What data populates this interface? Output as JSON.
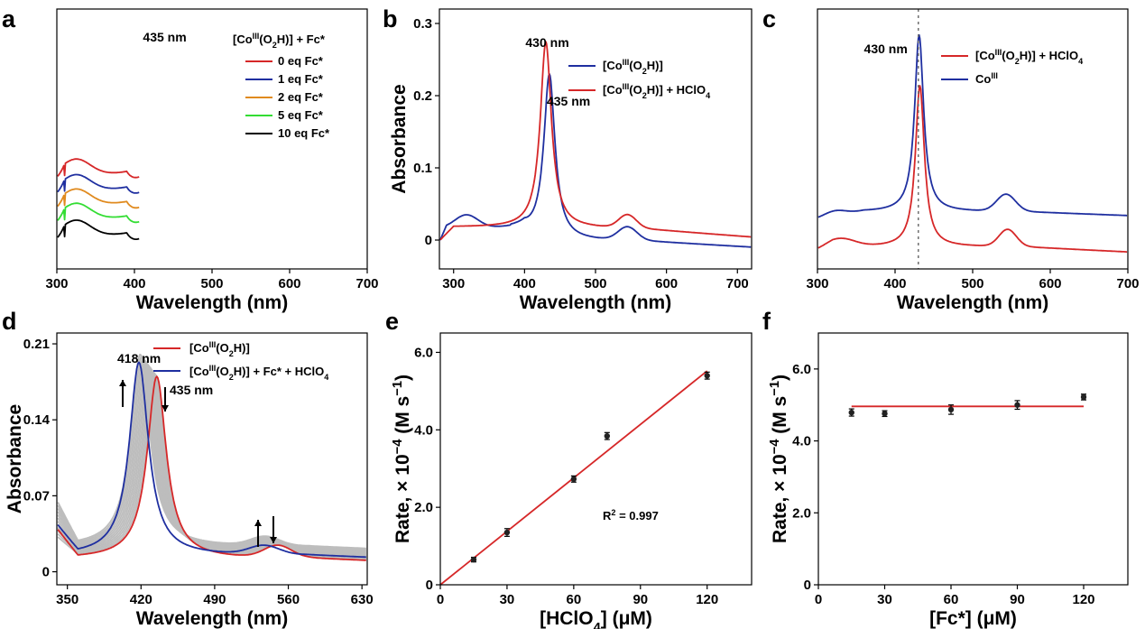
{
  "chart_data": [
    {
      "panel": "a",
      "type": "line",
      "xlabel": "Wavelength (nm)",
      "ylabel": "",
      "xlim": [
        300,
        700
      ],
      "ylim": [
        0,
        1
      ],
      "xticks": [
        300,
        400,
        500,
        600,
        700
      ],
      "yticks": [],
      "peak_label": "435 nm",
      "legend_title": "[Co(O2H)] + Fc*",
      "legend_title_parts": {
        "pre": "[Co",
        "sup": "III",
        "mid": "(O",
        "sub": "2",
        "post": "H)] + Fc*"
      },
      "legend_position": "top-right",
      "series": [
        {
          "name": "0 eq Fc*",
          "color": "#d62728",
          "offset": 0.315,
          "peak": 0.99
        },
        {
          "name": "1 eq Fc*",
          "color": "#1f2fa0",
          "offset": 0.255,
          "peak": 0.935
        },
        {
          "name": "2 eq Fc*",
          "color": "#e08a1e",
          "offset": 0.2,
          "peak": 0.83
        },
        {
          "name": "5 eq Fc*",
          "color": "#33dd33",
          "offset": 0.145,
          "peak": 0.765
        },
        {
          "name": "10 eq Fc*",
          "color": "#000000",
          "offset": 0.08,
          "peak": 0.69
        }
      ]
    },
    {
      "panel": "b",
      "type": "line",
      "xlabel": "Wavelength (nm)",
      "ylabel": "Absorbance",
      "xlim": [
        280,
        720
      ],
      "ylim": [
        -0.04,
        0.32
      ],
      "xticks": [
        300,
        400,
        500,
        600,
        700
      ],
      "yticks": [
        0,
        0.1,
        0.2,
        0.3
      ],
      "ytick_labels": [
        "0",
        "0.1",
        "0.2",
        "0.3"
      ],
      "annotations": [
        "430 nm",
        "435 nm"
      ],
      "legend_position": "top-right",
      "series": [
        {
          "name": "[Co(O2H)]",
          "name_parts": {
            "pre": "[Co",
            "sup": "III",
            "mid": "(O",
            "sub": "2",
            "post": "H)]"
          },
          "color": "#1f2fa0",
          "peak_nm": 435,
          "peak_abs": 0.245
        },
        {
          "name": "[Co(O2H)] + HClO4",
          "name_parts": {
            "pre": "[Co",
            "sup": "III",
            "mid": "(O",
            "sub": "2",
            "post": "H)] + HClO",
            "sub2": "4"
          },
          "color": "#d62728",
          "peak_nm": 430,
          "peak_abs": 0.275
        }
      ]
    },
    {
      "panel": "c",
      "type": "line",
      "xlabel": "Wavelength (nm)",
      "ylabel": "",
      "xlim": [
        300,
        700
      ],
      "ylim": [
        0,
        1
      ],
      "xticks": [
        300,
        400,
        500,
        600,
        700
      ],
      "yticks": [],
      "annotations": [
        "430 nm"
      ],
      "dashed_line_nm": 430,
      "legend_position": "top-right",
      "series": [
        {
          "name": "[Co(O2H)] + HClO4",
          "name_parts": {
            "pre": "[Co",
            "sup": "III",
            "mid": "(O",
            "sub": "2",
            "post": "H)] + HClO",
            "sub2": "4"
          },
          "color": "#d62728"
        },
        {
          "name": "Co",
          "name_parts": {
            "pre": "Co",
            "sup": "III"
          },
          "color": "#1f2fa0"
        }
      ]
    },
    {
      "panel": "d",
      "type": "line",
      "xlabel": "Wavelength (nm)",
      "ylabel": "Absorbance",
      "xlim": [
        340,
        635
      ],
      "ylim": [
        -0.012,
        0.22
      ],
      "xticks": [
        350,
        420,
        490,
        560,
        630
      ],
      "yticks": [
        0,
        0.07,
        0.14,
        0.21
      ],
      "ytick_labels": [
        "0",
        "0.07",
        "0.14",
        "0.21"
      ],
      "annotations": [
        "418 nm",
        "435 nm"
      ],
      "legend_position": "top-right",
      "series": [
        {
          "name": "[Co(O2H)]",
          "name_parts": {
            "pre": "[Co",
            "sup": "III",
            "mid": "(O",
            "sub": "2",
            "post": "H)]"
          },
          "color": "#d62728",
          "peak_nm": 435,
          "peak_abs": 0.176
        },
        {
          "name": "[Co(O2H)] + Fc* + HClO4",
          "name_parts": {
            "pre": "[Co",
            "sup": "III",
            "mid": "(O",
            "sub": "2",
            "post": "H)] + Fc* + HClO",
            "sub2": "4"
          },
          "color": "#1f2fa0",
          "peak_nm": 418,
          "peak_abs": 0.19
        }
      ]
    },
    {
      "panel": "e",
      "type": "scatter",
      "xlabel": "[HClO4] (μM)",
      "xlabel_parts": {
        "pre": "[HClO",
        "sub": "4",
        "post": "] (μM)"
      },
      "ylabel": "Rate, × 10−4 (M s−1)",
      "ylabel_parts": {
        "pre": "Rate, × 10",
        "sup": "−4",
        "mid": " (M s",
        "sup2": "−1",
        "post": ")"
      },
      "xlim": [
        0,
        140
      ],
      "ylim": [
        0,
        6.5
      ],
      "xticks": [
        0,
        30,
        60,
        90,
        120
      ],
      "yticks": [
        0,
        2.0,
        4.0,
        6.0
      ],
      "ytick_labels": [
        "0",
        "2.0",
        "4.0",
        "6.0"
      ],
      "x": [
        15,
        30,
        60,
        75,
        120
      ],
      "y": [
        0.65,
        1.35,
        2.73,
        3.84,
        5.4
      ],
      "yerr": [
        0.06,
        0.1,
        0.08,
        0.09,
        0.09
      ],
      "fit_line": {
        "x": [
          0,
          120
        ],
        "y": [
          0,
          5.52
        ],
        "color": "#d62728"
      },
      "annotation": "R2 = 0.997",
      "annotation_parts": {
        "pre": "R",
        "sup": "2",
        "post": " = 0.997"
      }
    },
    {
      "panel": "f",
      "type": "scatter",
      "xlabel": "[Fc*] (μM)",
      "ylabel": "Rate, × 10−4 (M s−1)",
      "ylabel_parts": {
        "pre": "Rate, × 10",
        "sup": "−4",
        "mid": " (M s",
        "sup2": "−1",
        "post": ")"
      },
      "xlim": [
        0,
        140
      ],
      "ylim": [
        0,
        7.0
      ],
      "xticks": [
        0,
        30,
        60,
        90,
        120
      ],
      "yticks": [
        0,
        2.0,
        4.0,
        6.0
      ],
      "ytick_labels": [
        "0",
        "2.0",
        "4.0",
        "6.0"
      ],
      "x": [
        15,
        30,
        60,
        90,
        120
      ],
      "y": [
        4.79,
        4.76,
        4.87,
        5.0,
        5.22
      ],
      "yerr": [
        0.1,
        0.08,
        0.13,
        0.12,
        0.08
      ],
      "fit_line": {
        "x": [
          15,
          120
        ],
        "y": [
          4.96,
          4.96
        ],
        "color": "#d62728"
      }
    }
  ]
}
